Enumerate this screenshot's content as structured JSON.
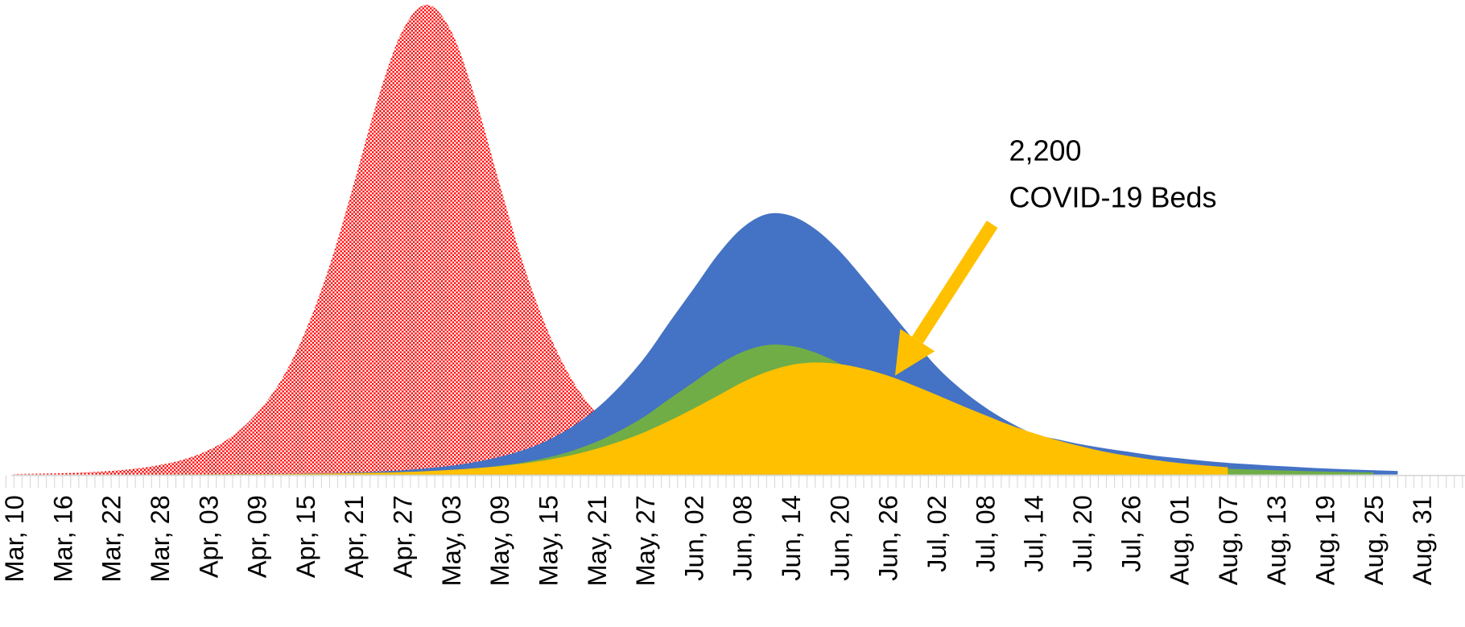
{
  "chart_data": {
    "type": "area",
    "categories": [
      "Mar, 10",
      null,
      "Mar, 16",
      null,
      "Mar, 22",
      null,
      "Mar, 28",
      null,
      "Apr, 03",
      null,
      "Apr, 09",
      null,
      "Apr, 15",
      null,
      "Apr, 21",
      null,
      "Apr, 27",
      null,
      "May, 03",
      null,
      "May, 09",
      null,
      "May, 15",
      null,
      "May, 21",
      null,
      "May, 27",
      null,
      "Jun, 02",
      null,
      "Jun, 08",
      null,
      "Jun, 14",
      null,
      "Jun, 20",
      null,
      "Jun, 26",
      null,
      "Jul, 02",
      null,
      "Jul, 08",
      null,
      "Jul, 14",
      null,
      "Jul, 20",
      null,
      "Jul, 26",
      null,
      "Aug, 01",
      null,
      "Aug, 07",
      null,
      "Aug, 13",
      null,
      "Aug, 19",
      null,
      "Aug, 25",
      null,
      "Aug, 31"
    ],
    "series": [
      {
        "color": "#ff0000",
        "pattern": "dots",
        "values": [
          10,
          17,
          28,
          44,
          72,
          116,
          188,
          299,
          478,
          761,
          1200,
          1850,
          2810,
          4100,
          5710,
          7390,
          8710,
          9220,
          8710,
          7390,
          5710,
          4100,
          2810,
          1850,
          1200,
          761,
          478,
          299,
          188,
          116,
          72,
          44,
          28,
          17,
          10,
          6,
          4,
          2,
          1,
          null,
          null,
          null,
          null,
          null,
          null,
          null,
          null,
          null,
          null,
          null,
          null,
          null,
          null,
          null,
          null,
          null,
          null,
          null,
          null
        ]
      },
      {
        "color": "#4472c4",
        "values": [
          0.3,
          0.4,
          0.6,
          0.8,
          1.2,
          1.7,
          2.4,
          3.5,
          4.9,
          7,
          10,
          14,
          21,
          29,
          42,
          60,
          86,
          122,
          173,
          246,
          349,
          483,
          678,
          944,
          1297,
          1754,
          2310,
          2990,
          3650,
          4320,
          4840,
          5110,
          5080,
          4820,
          4390,
          3840,
          3260,
          2680,
          2120,
          1680,
          1320,
          1030,
          800,
          690,
          590,
          510,
          440,
          370,
          320,
          270,
          230,
          200,
          170,
          145,
          120,
          100,
          85,
          70,
          null
        ]
      },
      {
        "color": "#70ad47",
        "values": [
          0.1,
          0.2,
          0.3,
          0.4,
          0.6,
          0.8,
          1.2,
          1.7,
          2.4,
          3.5,
          5,
          7,
          10,
          14,
          21,
          30,
          43,
          61,
          86,
          122,
          173,
          240,
          337,
          469,
          645,
          872,
          1148,
          1486,
          1814,
          2147,
          2405,
          2540,
          2525,
          2396,
          2182,
          1908,
          1620,
          1332,
          1054,
          835,
          656,
          512,
          398,
          343,
          293,
          253,
          219,
          184,
          159,
          134,
          114,
          99,
          85,
          72,
          60,
          50,
          42,
          null,
          null
        ]
      },
      {
        "color": "#ffc000",
        "values": [
          0.4,
          0.5,
          0.7,
          1,
          1.3,
          1.8,
          2.5,
          3.3,
          4.5,
          6.1,
          8.4,
          11,
          15,
          21,
          28,
          37,
          50,
          68,
          92,
          124,
          165,
          220,
          291,
          385,
          508,
          657,
          838,
          1056,
          1296,
          1549,
          1808,
          2013,
          2151,
          2200,
          2169,
          2077,
          1940,
          1762,
          1566,
          1362,
          1166,
          977,
          814,
          671,
          550,
          442,
          358,
          286,
          227,
          182,
          144,
          null,
          null,
          null,
          null,
          null,
          null,
          null,
          null
        ]
      }
    ],
    "ylim": [
      0,
      9300
    ],
    "annotations": [
      "2,200",
      "COVID-19 Beds"
    ]
  }
}
